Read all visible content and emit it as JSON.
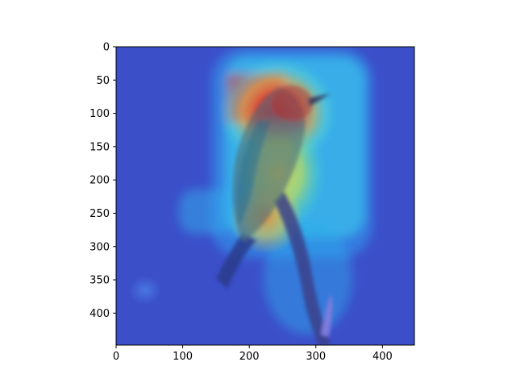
{
  "chart_data": {
    "type": "heatmap",
    "title": "",
    "xlabel": "",
    "ylabel": "",
    "image_description": "photograph of a small bird perched on a branch overlaid with a jet-colormap attention heatmap",
    "xlim": [
      0,
      448
    ],
    "ylim": [
      448,
      0
    ],
    "x_ticks": [
      0,
      100,
      200,
      300,
      400
    ],
    "y_ticks": [
      0,
      50,
      100,
      150,
      200,
      250,
      300,
      350,
      400
    ],
    "x_tick_labels": [
      "0",
      "100",
      "200",
      "300",
      "400"
    ],
    "y_tick_labels": [
      "0",
      "50",
      "100",
      "150",
      "200",
      "250",
      "300",
      "350",
      "400"
    ],
    "colormap": "jet",
    "background_level_color": "#3b4fc9",
    "hotspots": [
      {
        "region": "head",
        "x": 250,
        "y": 100,
        "intensity": 1.0
      },
      {
        "region": "upper-left-block",
        "x": 200,
        "y": 80,
        "intensity": 0.85
      },
      {
        "region": "chest",
        "x": 270,
        "y": 170,
        "intensity": 0.75
      },
      {
        "region": "belly",
        "x": 250,
        "y": 250,
        "intensity": 0.65
      },
      {
        "region": "branch",
        "x": 290,
        "y": 330,
        "intensity": 0.45
      }
    ]
  }
}
